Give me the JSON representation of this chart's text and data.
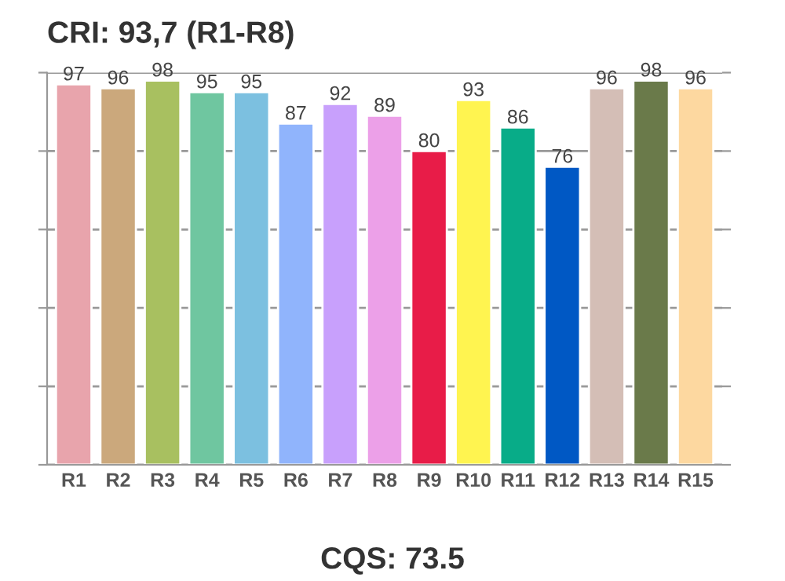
{
  "chart_data": {
    "type": "bar",
    "title": "CRI: 93,7 (R1-R8)",
    "categories": [
      "R1",
      "R2",
      "R3",
      "R4",
      "R5",
      "R6",
      "R7",
      "R8",
      "R9",
      "R10",
      "R11",
      "R12",
      "R13",
      "R14",
      "R15"
    ],
    "values": [
      97,
      96,
      98,
      95,
      95,
      87,
      92,
      89,
      80,
      93,
      86,
      76,
      96,
      98,
      96
    ],
    "colors": [
      "#e8a4ac",
      "#cba87c",
      "#a8c060",
      "#6fc6a0",
      "#7cc0e0",
      "#90b4fc",
      "#c8a0fc",
      "#ecA0e8",
      "#e81c48",
      "#fff450",
      "#08ac88",
      "#0058c4",
      "#d4beb6",
      "#6a7a4a",
      "#fdd8a0"
    ],
    "ylim": [
      0,
      100
    ],
    "yticks": [
      {
        "value": 0,
        "label": null
      },
      {
        "value": 20,
        "label": null
      },
      {
        "value": 40,
        "label": null
      },
      {
        "value": 60,
        "label": null
      },
      {
        "value": 80,
        "label": null
      },
      {
        "value": 100,
        "label": null
      }
    ],
    "tick_labels": "x",
    "grid": "y",
    "data_labels": true,
    "annotations": [
      "CQS: 73.5"
    ]
  }
}
